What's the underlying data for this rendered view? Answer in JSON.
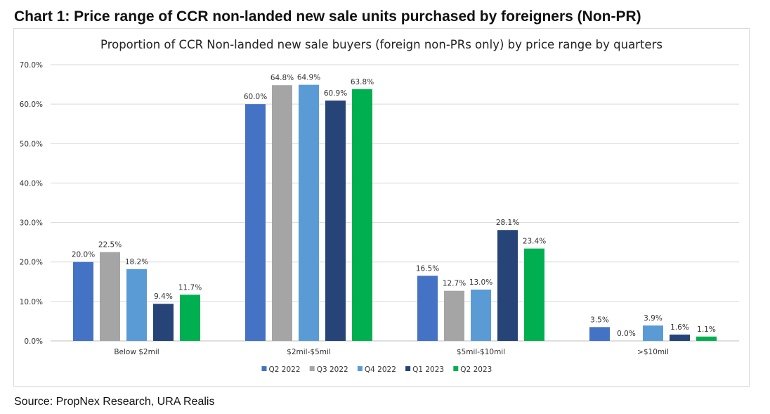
{
  "page_title": "Chart 1: Price range of CCR non-landed new sale units purchased by foreigners (Non-PR)",
  "source": "Source: PropNex Research, URA Realis",
  "chart_data": {
    "type": "bar",
    "title": "Proportion of CCR Non-landed new sale buyers (foreign non-PRs only) by price range by quarters",
    "categories": [
      "Below $2mil",
      "$2mil-$5mil",
      "$5mil-$10mil",
      ">$10mil"
    ],
    "ylim": [
      0,
      70
    ],
    "yticks": [
      "0.0%",
      "10.0%",
      "20.0%",
      "30.0%",
      "40.0%",
      "50.0%",
      "60.0%",
      "70.0%"
    ],
    "ytick_values": [
      0,
      10,
      20,
      30,
      40,
      50,
      60,
      70
    ],
    "grid": true,
    "legend_position": "bottom",
    "series": [
      {
        "name": "Q2 2022",
        "color": "#4472c4",
        "values": [
          20.0,
          60.0,
          16.5,
          3.5
        ],
        "labels": [
          "20.0%",
          "60.0%",
          "16.5%",
          "3.5%"
        ]
      },
      {
        "name": "Q3 2022",
        "color": "#a5a5a5",
        "values": [
          22.5,
          64.8,
          12.7,
          0.0
        ],
        "labels": [
          "22.5%",
          "64.8%",
          "12.7%",
          "0.0%"
        ]
      },
      {
        "name": "Q4 2022",
        "color": "#5b9bd5",
        "values": [
          18.2,
          64.9,
          13.0,
          3.9
        ],
        "labels": [
          "18.2%",
          "64.9%",
          "13.0%",
          "3.9%"
        ]
      },
      {
        "name": "Q1 2023",
        "color": "#264478",
        "values": [
          9.4,
          60.9,
          28.1,
          1.6
        ],
        "labels": [
          "9.4%",
          "60.9%",
          "28.1%",
          "1.6%"
        ]
      },
      {
        "name": "Q2 2023",
        "color": "#00b050",
        "values": [
          11.7,
          63.8,
          23.4,
          1.1
        ],
        "labels": [
          "11.7%",
          "63.8%",
          "23.4%",
          "1.1%"
        ]
      }
    ]
  }
}
